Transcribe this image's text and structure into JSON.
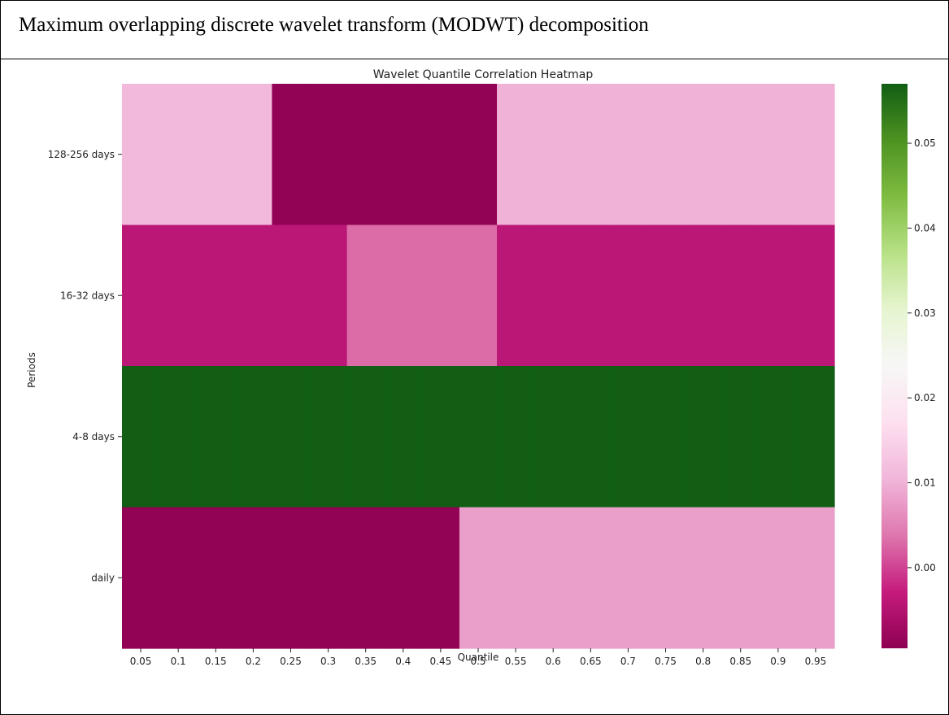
{
  "caption": "Maximum overlapping discrete wavelet transform (MODWT) decomposition",
  "chart_data": {
    "type": "heatmap",
    "title": "Wavelet Quantile Correlation Heatmap",
    "xlabel": "Quantile",
    "ylabel": "Periods",
    "x": [
      "0.05",
      "0.1",
      "0.15",
      "0.2",
      "0.25",
      "0.3",
      "0.35",
      "0.4",
      "0.45",
      "0.5",
      "0.55",
      "0.6",
      "0.65",
      "0.7",
      "0.75",
      "0.8",
      "0.85",
      "0.9",
      "0.95"
    ],
    "y": [
      "128-256 days",
      "16-32 days",
      "4-8 days",
      "daily"
    ],
    "values": [
      [
        0.011,
        0.011,
        0.011,
        0.011,
        -0.009,
        -0.009,
        -0.009,
        -0.009,
        -0.009,
        -0.009,
        0.01,
        0.01,
        0.01,
        0.01,
        0.01,
        0.01,
        0.01,
        0.01,
        0.01
      ],
      [
        -0.004,
        -0.004,
        -0.004,
        -0.004,
        -0.004,
        -0.004,
        0.003,
        0.003,
        0.003,
        0.003,
        -0.004,
        -0.004,
        -0.004,
        -0.004,
        -0.004,
        -0.004,
        -0.004,
        -0.004,
        -0.004
      ],
      [
        0.057,
        0.057,
        0.057,
        0.057,
        0.057,
        0.057,
        0.057,
        0.057,
        0.057,
        0.057,
        0.057,
        0.057,
        0.057,
        0.057,
        0.057,
        0.057,
        0.057,
        0.057,
        0.057
      ],
      [
        -0.009,
        -0.009,
        -0.009,
        -0.009,
        -0.009,
        -0.009,
        -0.009,
        -0.009,
        -0.009,
        0.008,
        0.008,
        0.008,
        0.008,
        0.008,
        0.008,
        0.008,
        0.008,
        0.008,
        0.008
      ]
    ],
    "colorbar": {
      "ticks": [
        0.0,
        0.01,
        0.02,
        0.03,
        0.04,
        0.05
      ],
      "tick_labels": [
        "0.00",
        "0.01",
        "0.02",
        "0.03",
        "0.04",
        "0.05"
      ],
      "range": [
        -0.0095,
        0.057
      ],
      "colormap": "PiYG"
    },
    "grid": false
  }
}
